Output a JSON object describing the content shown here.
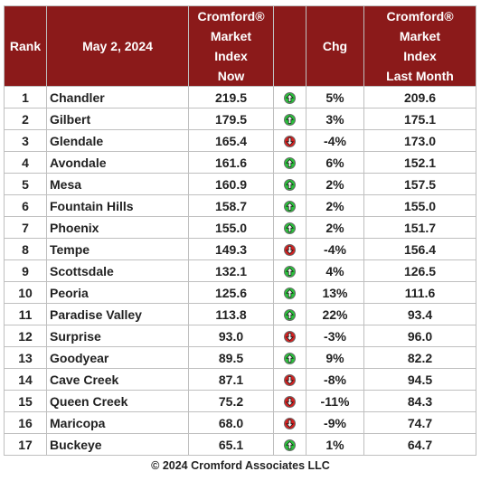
{
  "header": {
    "rank": "Rank",
    "date": "May 2, 2024",
    "now_lines": [
      "Cromford®",
      "Market",
      "Index",
      "Now"
    ],
    "arrow": "",
    "chg": "Chg",
    "last_lines": [
      "Cromford®",
      "Market",
      "Index",
      "Last Month"
    ]
  },
  "colors": {
    "header_bg": "#8b1a1a",
    "up": "#29c23b",
    "down": "#d42020"
  },
  "rows": [
    {
      "rank": "1",
      "city": "Chandler",
      "now": "219.5",
      "dir": "up",
      "chg": "5%",
      "last": "209.6"
    },
    {
      "rank": "2",
      "city": "Gilbert",
      "now": "179.5",
      "dir": "up",
      "chg": "3%",
      "last": "175.1"
    },
    {
      "rank": "3",
      "city": "Glendale",
      "now": "165.4",
      "dir": "down",
      "chg": "-4%",
      "last": "173.0"
    },
    {
      "rank": "4",
      "city": "Avondale",
      "now": "161.6",
      "dir": "up",
      "chg": "6%",
      "last": "152.1"
    },
    {
      "rank": "5",
      "city": "Mesa",
      "now": "160.9",
      "dir": "up",
      "chg": "2%",
      "last": "157.5"
    },
    {
      "rank": "6",
      "city": "Fountain Hills",
      "now": "158.7",
      "dir": "up",
      "chg": "2%",
      "last": "155.0"
    },
    {
      "rank": "7",
      "city": "Phoenix",
      "now": "155.0",
      "dir": "up",
      "chg": "2%",
      "last": "151.7"
    },
    {
      "rank": "8",
      "city": "Tempe",
      "now": "149.3",
      "dir": "down",
      "chg": "-4%",
      "last": "156.4"
    },
    {
      "rank": "9",
      "city": "Scottsdale",
      "now": "132.1",
      "dir": "up",
      "chg": "4%",
      "last": "126.5"
    },
    {
      "rank": "10",
      "city": "Peoria",
      "now": "125.6",
      "dir": "up",
      "chg": "13%",
      "last": "111.6"
    },
    {
      "rank": "11",
      "city": "Paradise Valley",
      "now": "113.8",
      "dir": "up",
      "chg": "22%",
      "last": "93.4"
    },
    {
      "rank": "12",
      "city": "Surprise",
      "now": "93.0",
      "dir": "down",
      "chg": "-3%",
      "last": "96.0"
    },
    {
      "rank": "13",
      "city": "Goodyear",
      "now": "89.5",
      "dir": "up",
      "chg": "9%",
      "last": "82.2"
    },
    {
      "rank": "14",
      "city": "Cave Creek",
      "now": "87.1",
      "dir": "down",
      "chg": "-8%",
      "last": "94.5"
    },
    {
      "rank": "15",
      "city": "Queen Creek",
      "now": "75.2",
      "dir": "down",
      "chg": "-11%",
      "last": "84.3"
    },
    {
      "rank": "16",
      "city": "Maricopa",
      "now": "68.0",
      "dir": "down",
      "chg": "-9%",
      "last": "74.7"
    },
    {
      "rank": "17",
      "city": "Buckeye",
      "now": "65.1",
      "dir": "up",
      "chg": "1%",
      "last": "64.7"
    }
  ],
  "footer": "© 2024 Cromford Associates LLC"
}
